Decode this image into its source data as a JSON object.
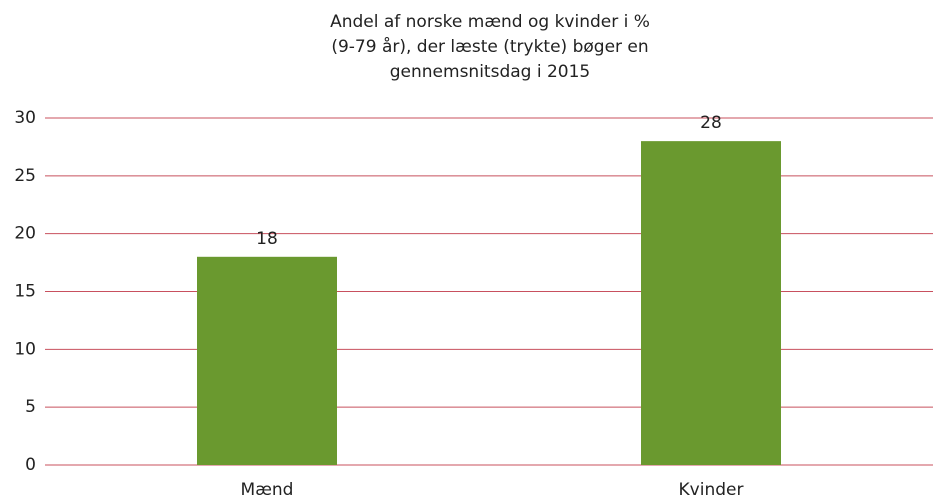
{
  "chart_data": {
    "type": "bar",
    "title": [
      "Andel af norske mænd og kvinder i %",
      "(9-79 år), der læste (trykte) bøger en",
      "gennemsnitsdag i 2015"
    ],
    "categories": [
      "Mænd",
      "Kvinder"
    ],
    "values": [
      18,
      28
    ],
    "color": "#6a992f",
    "ylim": [
      0,
      30
    ],
    "yticks": [
      0,
      5,
      10,
      15,
      20,
      25,
      30
    ],
    "grid": true,
    "grid_color": "#c8505e"
  }
}
